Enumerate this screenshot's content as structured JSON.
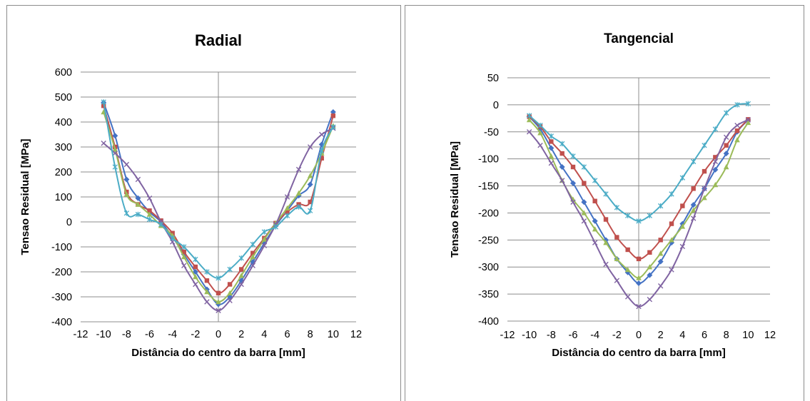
{
  "chart_data": [
    {
      "type": "line",
      "title": "Radial",
      "xlabel": "Distância do centro da barra [mm]",
      "ylabel": "Tensao Residual [MPa]",
      "xlim": [
        -12,
        12
      ],
      "ylim": [
        -400,
        600
      ],
      "xticks": [
        -12,
        -10,
        -8,
        -6,
        -4,
        -2,
        0,
        2,
        4,
        6,
        8,
        10,
        12
      ],
      "yticks": [
        -400,
        -300,
        -200,
        -100,
        0,
        100,
        200,
        300,
        400,
        500,
        600
      ],
      "grid": "horizontal",
      "x": [
        -10,
        -9,
        -8,
        -7,
        -6,
        -5,
        -4,
        -3,
        -2,
        -1,
        0,
        1,
        2,
        3,
        4,
        5,
        6,
        7,
        8,
        9,
        10
      ],
      "series": [
        {
          "color": "#4472C4",
          "marker": "diamond",
          "values": [
            478,
            345,
            170,
            95,
            40,
            0,
            -60,
            -130,
            -200,
            -270,
            -330,
            -300,
            -235,
            -160,
            -85,
            -15,
            45,
            105,
            150,
            310,
            440
          ]
        },
        {
          "color": "#C0504D",
          "marker": "square",
          "values": [
            465,
            300,
            120,
            70,
            45,
            5,
            -45,
            -120,
            -180,
            -235,
            -285,
            -250,
            -190,
            -125,
            -65,
            -5,
            40,
            70,
            80,
            255,
            425
          ]
        },
        {
          "color": "#9BBB59",
          "marker": "triangle",
          "values": [
            440,
            290,
            110,
            70,
            30,
            -15,
            -55,
            -140,
            -220,
            -280,
            -320,
            -285,
            -215,
            -140,
            -70,
            -5,
            55,
            115,
            185,
            275,
            385
          ]
        },
        {
          "color": "#8064A2",
          "marker": "x",
          "values": [
            315,
            275,
            230,
            170,
            95,
            0,
            -80,
            -175,
            -250,
            -320,
            -355,
            -315,
            -250,
            -175,
            -95,
            -10,
            100,
            210,
            300,
            350,
            375
          ]
        },
        {
          "color": "#4BACC6",
          "marker": "star",
          "values": [
            480,
            220,
            35,
            30,
            10,
            -10,
            -65,
            -100,
            -150,
            -200,
            -225,
            -190,
            -145,
            -90,
            -40,
            -20,
            25,
            60,
            45,
            285,
            380
          ]
        }
      ]
    },
    {
      "type": "line",
      "title": "Tangencial",
      "xlabel": "Distância do centro da barra [mm]",
      "ylabel": "Tensao Residual [MPa]",
      "xlim": [
        -12,
        12
      ],
      "ylim": [
        -400,
        50
      ],
      "xticks": [
        -12,
        -10,
        -8,
        -6,
        -4,
        -2,
        0,
        2,
        4,
        6,
        8,
        10,
        12
      ],
      "yticks": [
        -400,
        -350,
        -300,
        -250,
        -200,
        -150,
        -100,
        -50,
        0,
        50
      ],
      "grid": "horizontal",
      "x": [
        -10,
        -9,
        -8,
        -7,
        -6,
        -5,
        -4,
        -3,
        -2,
        -1,
        0,
        1,
        2,
        3,
        4,
        5,
        6,
        7,
        8,
        9,
        10
      ],
      "series": [
        {
          "color": "#4472C4",
          "marker": "diamond",
          "values": [
            -22,
            -45,
            -80,
            -115,
            -145,
            -180,
            -215,
            -250,
            -285,
            -310,
            -330,
            -315,
            -290,
            -255,
            -220,
            -185,
            -155,
            -120,
            -90,
            -50,
            -28
          ]
        },
        {
          "color": "#C0504D",
          "marker": "square",
          "values": [
            -22,
            -40,
            -68,
            -90,
            -115,
            -145,
            -178,
            -212,
            -245,
            -268,
            -285,
            -273,
            -250,
            -220,
            -187,
            -155,
            -123,
            -97,
            -75,
            -48,
            -27
          ]
        },
        {
          "color": "#9BBB59",
          "marker": "triangle",
          "values": [
            -28,
            -52,
            -95,
            -140,
            -175,
            -200,
            -230,
            -255,
            -285,
            -305,
            -320,
            -300,
            -275,
            -250,
            -225,
            -195,
            -172,
            -148,
            -115,
            -65,
            -33
          ]
        },
        {
          "color": "#8064A2",
          "marker": "x",
          "values": [
            -50,
            -75,
            -108,
            -140,
            -180,
            -215,
            -255,
            -295,
            -325,
            -355,
            -373,
            -360,
            -335,
            -305,
            -262,
            -210,
            -155,
            -105,
            -60,
            -38,
            -28
          ]
        },
        {
          "color": "#4BACC6",
          "marker": "star",
          "values": [
            -20,
            -38,
            -58,
            -72,
            -95,
            -115,
            -140,
            -165,
            -190,
            -205,
            -215,
            -205,
            -187,
            -165,
            -135,
            -105,
            -75,
            -45,
            -15,
            0,
            2
          ]
        }
      ]
    }
  ]
}
